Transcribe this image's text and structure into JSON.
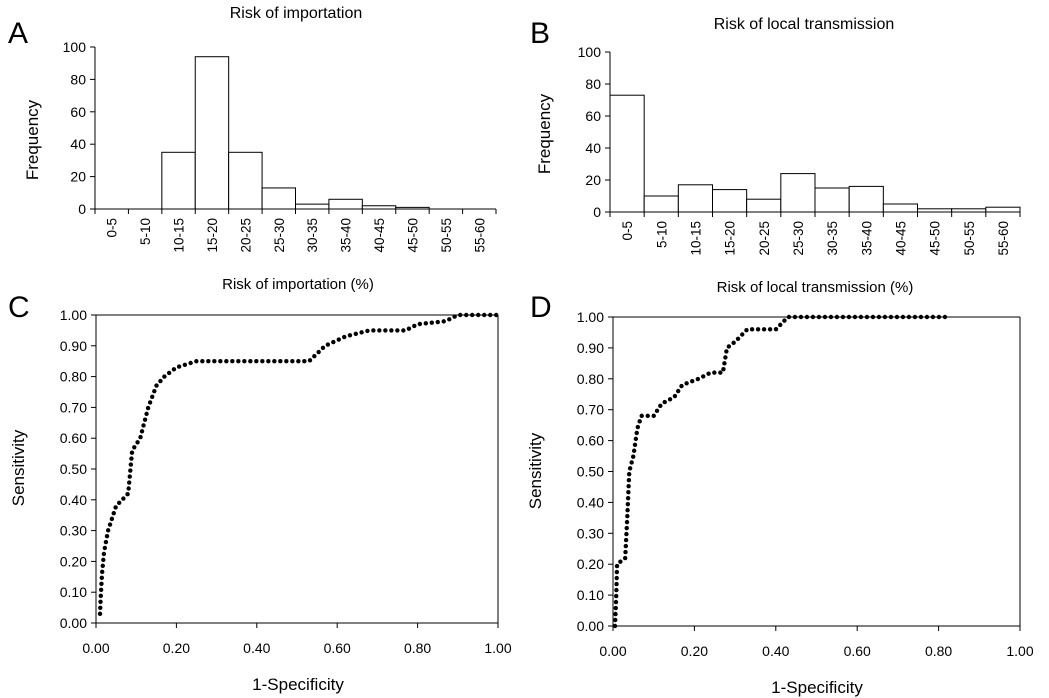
{
  "figure": {
    "panels": [
      {
        "letter": "A"
      },
      {
        "letter": "B"
      },
      {
        "letter": "C"
      },
      {
        "letter": "D"
      }
    ]
  },
  "chart_data": [
    {
      "type": "bar",
      "title": "Risk of importation",
      "xlabel": "Risk of importation  (%)",
      "ylabel": "Frequency",
      "ylim": [
        0,
        100
      ],
      "yticks": [
        "0",
        "20",
        "40",
        "60",
        "80",
        "100"
      ],
      "categories": [
        "0-5",
        "5-10",
        "10-15",
        "15-20",
        "20-25",
        "25-30",
        "30-35",
        "35-40",
        "40-45",
        "45-50",
        "50-55",
        "55-60"
      ],
      "values": [
        0,
        0,
        35,
        94,
        35,
        13,
        3,
        6,
        2,
        1,
        0,
        0
      ],
      "grid": false
    },
    {
      "type": "bar",
      "title": "Risk of local transmission",
      "xlabel": "Risk of local transmission (%)",
      "ylabel": "Frequency",
      "ylim": [
        0,
        100
      ],
      "yticks": [
        "0",
        "20",
        "40",
        "60",
        "80",
        "100"
      ],
      "categories": [
        "0-5",
        "5-10",
        "10-15",
        "15-20",
        "20-25",
        "25-30",
        "30-35",
        "35-40",
        "40-45",
        "45-50",
        "50-55",
        "55-60"
      ],
      "values": [
        73,
        10,
        17,
        14,
        8,
        24,
        15,
        16,
        5,
        2,
        2,
        3
      ],
      "grid": false
    },
    {
      "type": "scatter",
      "title": "",
      "xlabel": "1-Specificity",
      "ylabel": "Sensitivity",
      "xlim": [
        0,
        1
      ],
      "ylim": [
        0,
        1
      ],
      "xticks": [
        "0.00",
        "0.20",
        "0.40",
        "0.60",
        "0.80",
        "1.00"
      ],
      "yticks": [
        "0.00",
        "0.10",
        "0.20",
        "0.30",
        "0.40",
        "0.50",
        "0.60",
        "0.70",
        "0.80",
        "0.90",
        "1.00"
      ],
      "points": [
        [
          0.01,
          0.03
        ],
        [
          0.012,
          0.09
        ],
        [
          0.015,
          0.16
        ],
        [
          0.02,
          0.23
        ],
        [
          0.03,
          0.3
        ],
        [
          0.05,
          0.38
        ],
        [
          0.08,
          0.42
        ],
        [
          0.09,
          0.56
        ],
        [
          0.11,
          0.6
        ],
        [
          0.13,
          0.7
        ],
        [
          0.15,
          0.77
        ],
        [
          0.17,
          0.8
        ],
        [
          0.2,
          0.83
        ],
        [
          0.25,
          0.85
        ],
        [
          0.35,
          0.85
        ],
        [
          0.45,
          0.85
        ],
        [
          0.53,
          0.85
        ],
        [
          0.57,
          0.9
        ],
        [
          0.62,
          0.93
        ],
        [
          0.68,
          0.95
        ],
        [
          0.77,
          0.95
        ],
        [
          0.8,
          0.97
        ],
        [
          0.87,
          0.98
        ],
        [
          0.9,
          1.0
        ],
        [
          1.0,
          1.0
        ]
      ],
      "grid": false
    },
    {
      "type": "scatter",
      "title": "",
      "xlabel": "1-Specificity",
      "ylabel": "Sensitivity",
      "xlim": [
        0,
        1
      ],
      "ylim": [
        0,
        1
      ],
      "xticks": [
        "0.00",
        "0.20",
        "0.40",
        "0.60",
        "0.80",
        "1.00"
      ],
      "yticks": [
        "0.00",
        "0.10",
        "0.20",
        "0.30",
        "0.40",
        "0.50",
        "0.60",
        "0.70",
        "0.80",
        "0.90",
        "1.00"
      ],
      "points": [
        [
          0.005,
          0.0
        ],
        [
          0.008,
          0.1
        ],
        [
          0.01,
          0.2
        ],
        [
          0.03,
          0.22
        ],
        [
          0.035,
          0.35
        ],
        [
          0.04,
          0.5
        ],
        [
          0.05,
          0.55
        ],
        [
          0.06,
          0.64
        ],
        [
          0.07,
          0.68
        ],
        [
          0.1,
          0.68
        ],
        [
          0.12,
          0.72
        ],
        [
          0.15,
          0.74
        ],
        [
          0.17,
          0.78
        ],
        [
          0.21,
          0.8
        ],
        [
          0.24,
          0.82
        ],
        [
          0.27,
          0.82
        ],
        [
          0.28,
          0.9
        ],
        [
          0.3,
          0.92
        ],
        [
          0.33,
          0.96
        ],
        [
          0.4,
          0.96
        ],
        [
          0.43,
          1.0
        ],
        [
          0.6,
          1.0
        ],
        [
          0.83,
          1.0
        ]
      ],
      "grid": false
    }
  ]
}
